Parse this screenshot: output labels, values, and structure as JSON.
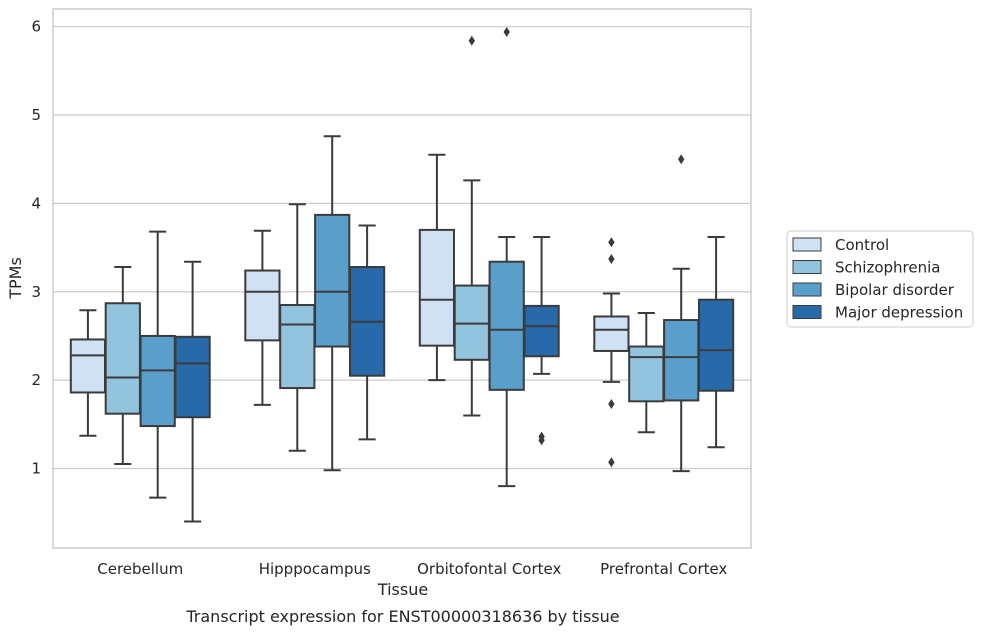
{
  "chart_data": {
    "type": "box",
    "xlabel": "Tissue",
    "ylabel": "TPMs",
    "caption": "Transcript expression for ENST00000318636 by tissue",
    "ylim": [
      0.1,
      6.2
    ],
    "yticks": [
      1,
      2,
      3,
      4,
      5,
      6
    ],
    "grid": "horizontal",
    "legend_position": "right",
    "categories": [
      "Cerebellum",
      "Hipppocampus",
      "Orbitofontal Cortex",
      "Prefrontal Cortex"
    ],
    "series": [
      {
        "name": "Control",
        "color": "#cfe1f2",
        "boxes": [
          {
            "whislo": 1.37,
            "q1": 1.86,
            "med": 2.28,
            "q3": 2.46,
            "whishi": 2.79,
            "fliers": []
          },
          {
            "whislo": 1.72,
            "q1": 2.45,
            "med": 3.0,
            "q3": 3.24,
            "whishi": 3.69,
            "fliers": []
          },
          {
            "whislo": 2.0,
            "q1": 2.39,
            "med": 2.91,
            "q3": 3.7,
            "whishi": 4.55,
            "fliers": []
          },
          {
            "whislo": 1.98,
            "q1": 2.33,
            "med": 2.57,
            "q3": 2.72,
            "whishi": 2.98,
            "fliers": [
              3.56,
              3.37,
              1.73,
              1.07
            ]
          }
        ]
      },
      {
        "name": "Schizophrenia",
        "color": "#93c4de",
        "boxes": [
          {
            "whislo": 1.05,
            "q1": 1.62,
            "med": 2.03,
            "q3": 2.87,
            "whishi": 3.28,
            "fliers": []
          },
          {
            "whislo": 1.2,
            "q1": 1.91,
            "med": 2.63,
            "q3": 2.85,
            "whishi": 3.99,
            "fliers": []
          },
          {
            "whislo": 1.6,
            "q1": 2.23,
            "med": 2.64,
            "q3": 3.07,
            "whishi": 4.26,
            "fliers": [
              5.84
            ]
          },
          {
            "whislo": 1.41,
            "q1": 1.76,
            "med": 2.26,
            "q3": 2.38,
            "whishi": 2.76,
            "fliers": []
          }
        ]
      },
      {
        "name": "Bipolar disorder",
        "color": "#5a9ecb",
        "boxes": [
          {
            "whislo": 0.67,
            "q1": 1.48,
            "med": 2.11,
            "q3": 2.5,
            "whishi": 3.68,
            "fliers": []
          },
          {
            "whislo": 0.98,
            "q1": 2.38,
            "med": 3.0,
            "q3": 3.87,
            "whishi": 4.76,
            "fliers": []
          },
          {
            "whislo": 0.8,
            "q1": 1.89,
            "med": 2.57,
            "q3": 3.34,
            "whishi": 3.62,
            "fliers": [
              5.94
            ]
          },
          {
            "whislo": 0.97,
            "q1": 1.77,
            "med": 2.26,
            "q3": 2.68,
            "whishi": 3.26,
            "fliers": [
              4.5
            ]
          }
        ]
      },
      {
        "name": "Major depression",
        "color": "#2869aa",
        "boxes": [
          {
            "whislo": 0.4,
            "q1": 1.58,
            "med": 2.19,
            "q3": 2.49,
            "whishi": 3.34,
            "fliers": []
          },
          {
            "whislo": 1.33,
            "q1": 2.05,
            "med": 2.66,
            "q3": 3.28,
            "whishi": 3.75,
            "fliers": []
          },
          {
            "whislo": 2.07,
            "q1": 2.27,
            "med": 2.61,
            "q3": 2.84,
            "whishi": 3.62,
            "fliers": [
              1.36,
              1.32
            ]
          },
          {
            "whislo": 1.24,
            "q1": 1.88,
            "med": 2.34,
            "q3": 2.91,
            "whishi": 3.62,
            "fliers": []
          }
        ]
      }
    ]
  }
}
